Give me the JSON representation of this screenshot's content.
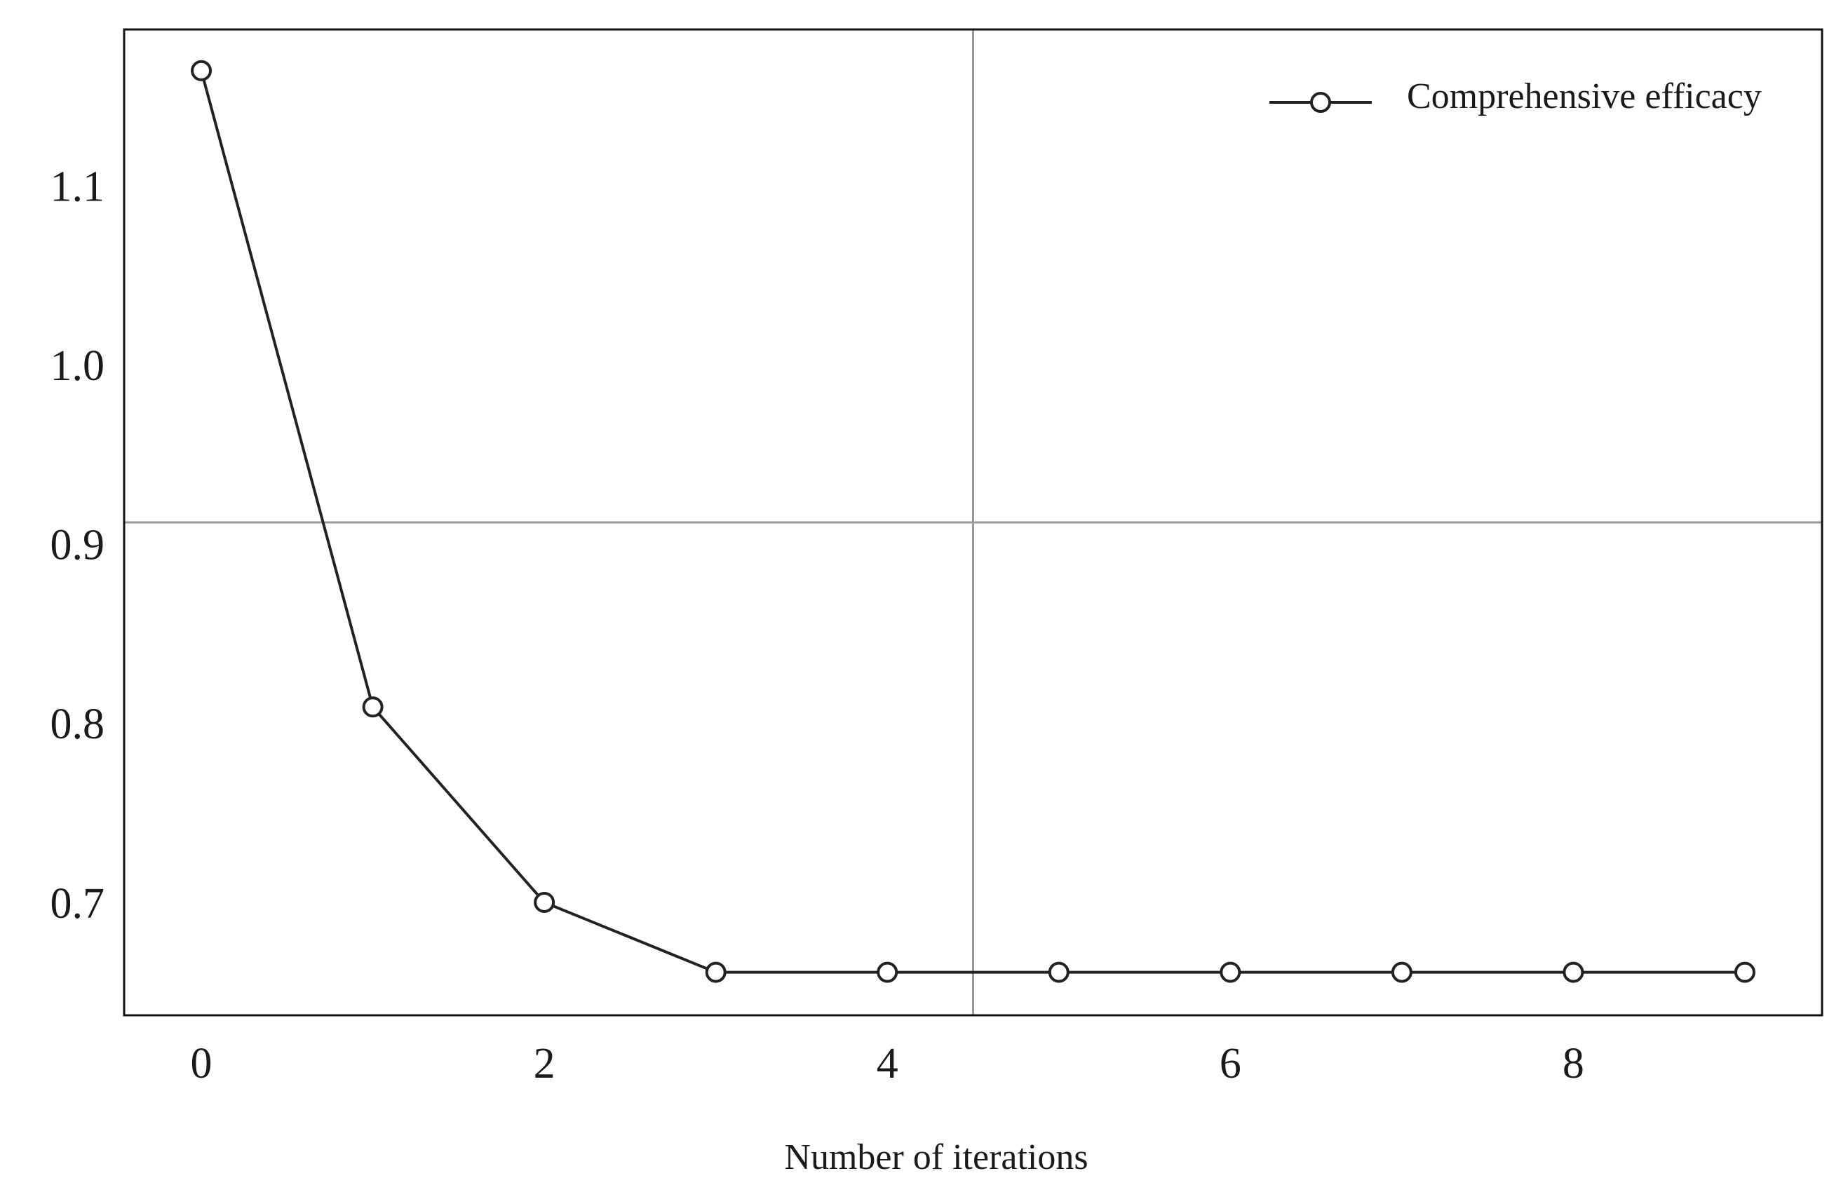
{
  "chart_data": {
    "type": "line",
    "x_label": "Number of iterations",
    "x": [
      0,
      1,
      2,
      3,
      4,
      5,
      6,
      7,
      8,
      9
    ],
    "series": [
      {
        "name": "Comprehensive efficacy",
        "color": "#222222",
        "values": [
          1.167,
          0.812,
          0.703,
          0.664,
          0.664,
          0.664,
          0.664,
          0.664,
          0.664,
          0.664
        ]
      }
    ],
    "xlim": [
      -0.45,
      9.45
    ],
    "ylim": [
      0.64,
      1.19
    ],
    "xticks": [
      0,
      2,
      4,
      6,
      8
    ],
    "yticks": [
      0.7,
      0.8,
      0.9,
      1.0,
      1.1
    ],
    "reference_lines": {
      "x": 4.5,
      "y": 0.915
    },
    "legend": "upper right",
    "marker": "open circle"
  }
}
